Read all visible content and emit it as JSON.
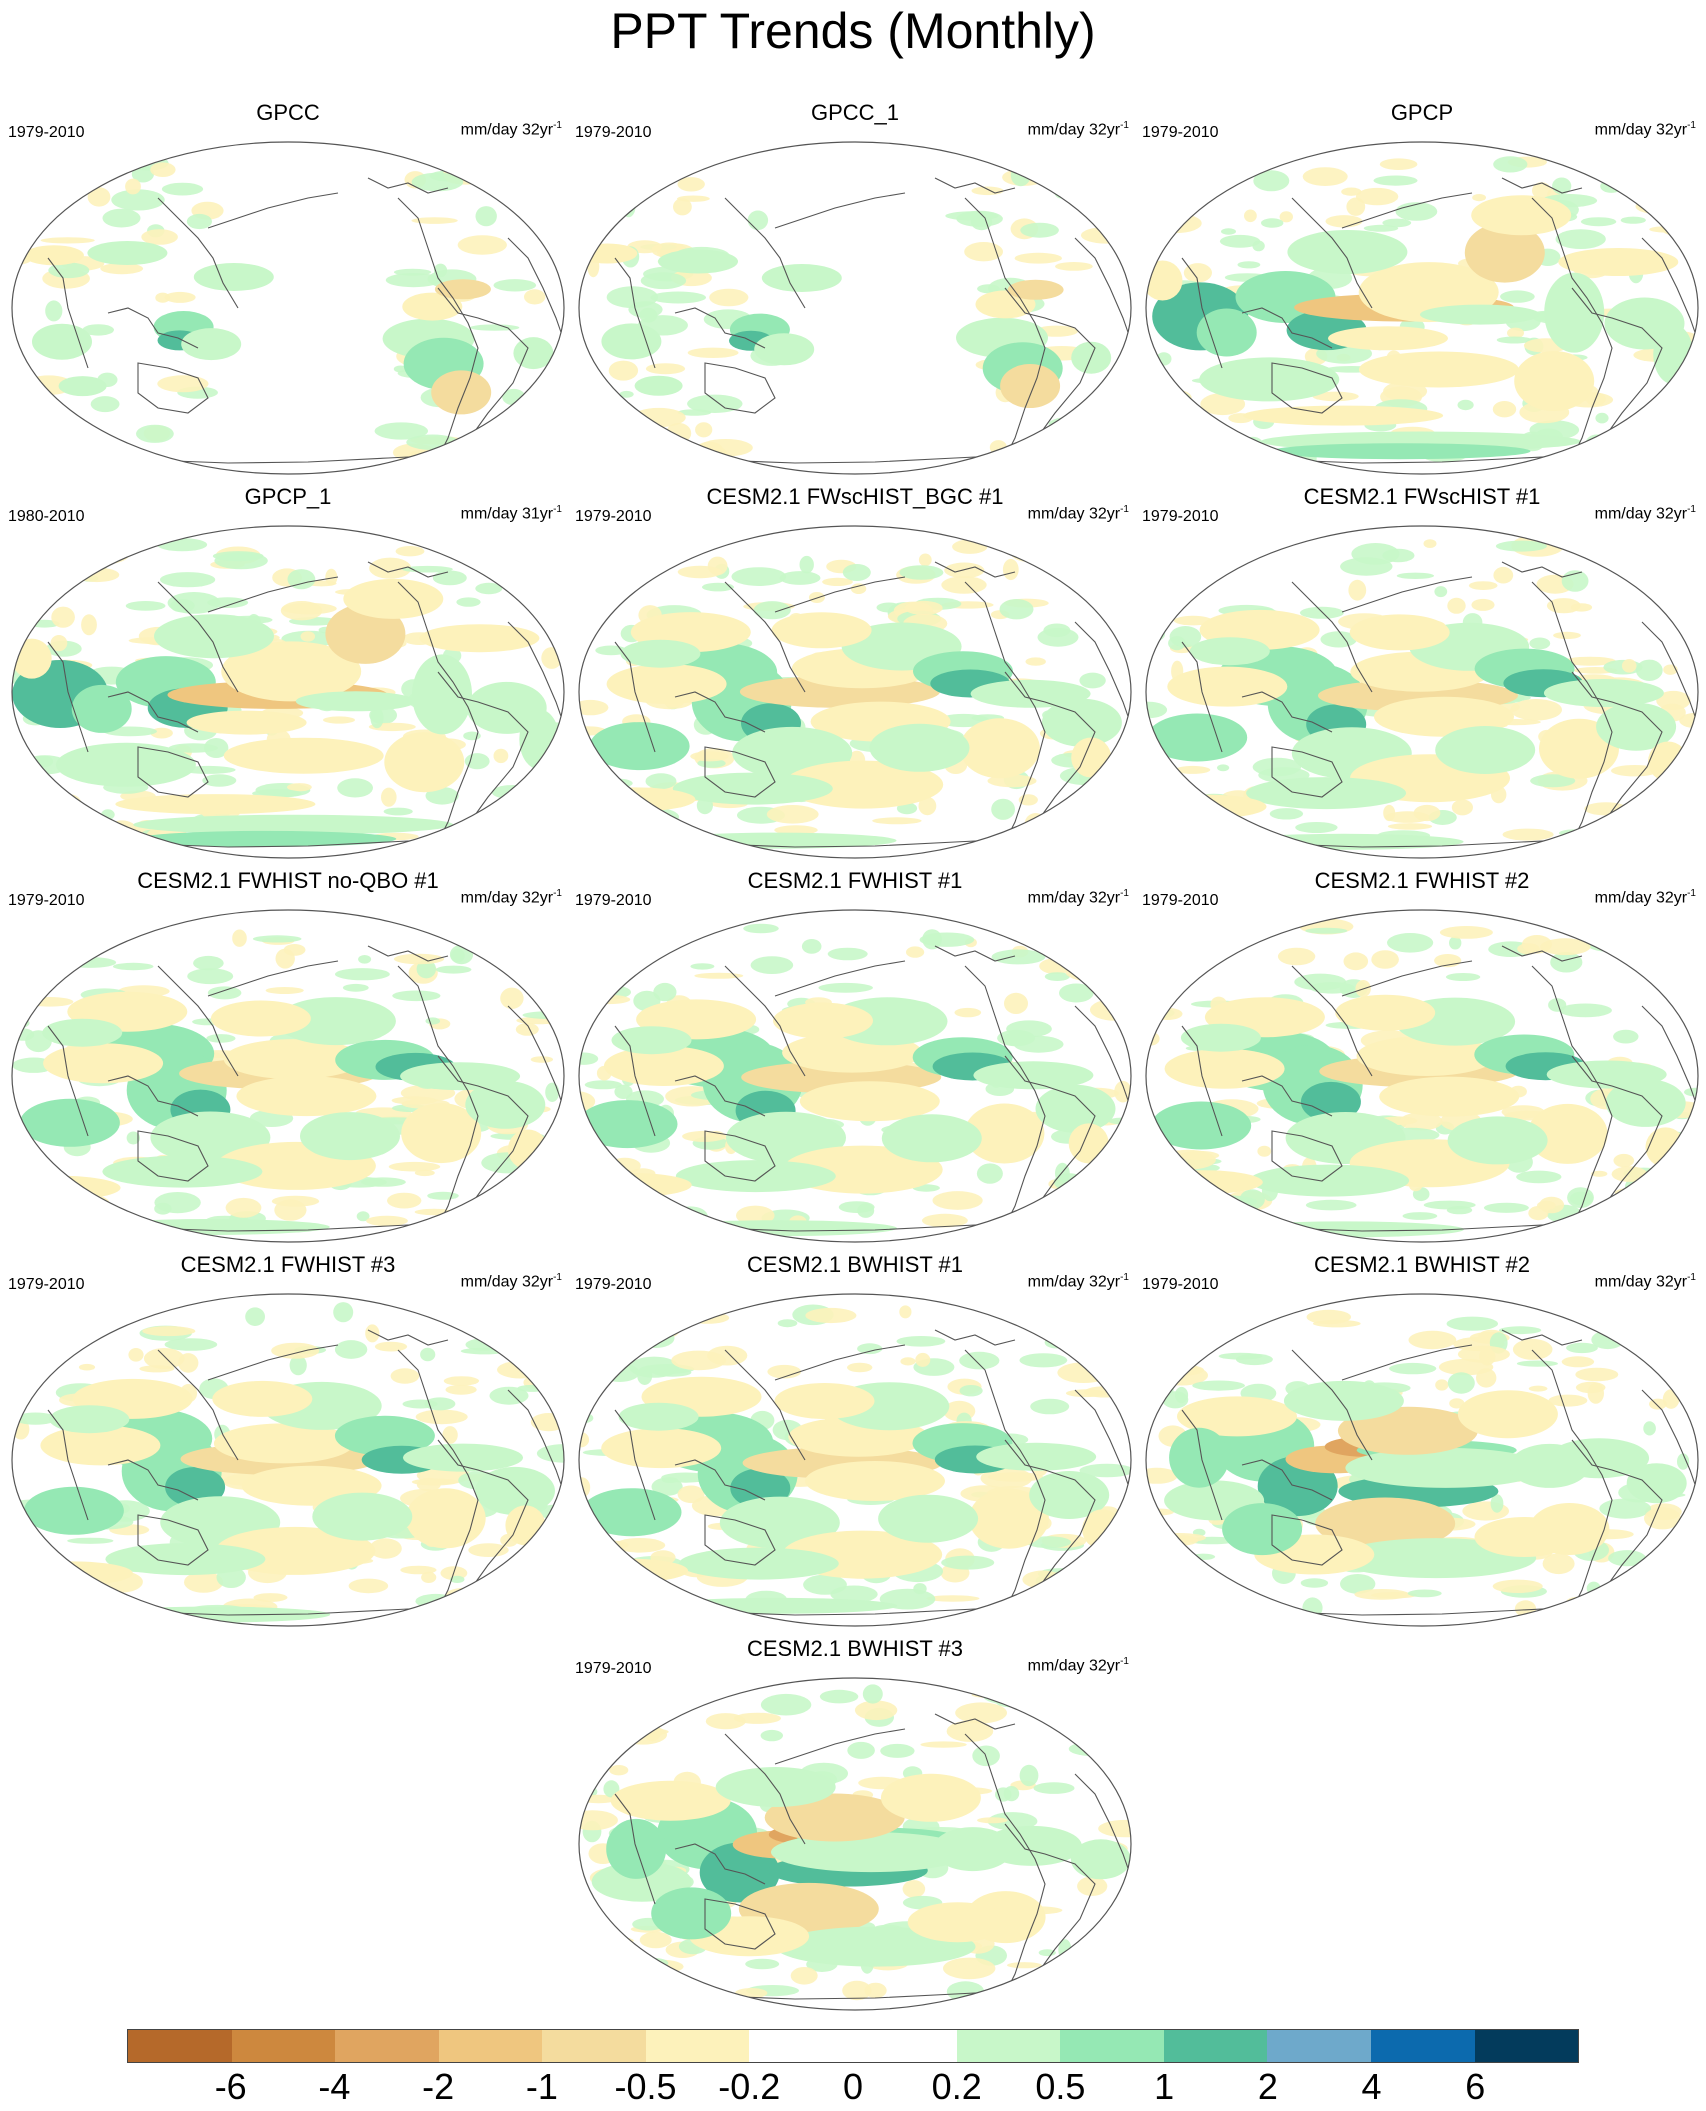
{
  "title": "PPT Trends (Monthly)",
  "panels": [
    {
      "title": "GPCC",
      "years": "1979-2010",
      "units": "mm/day 32yr",
      "pattern": "gpcc"
    },
    {
      "title": "GPCC_1",
      "years": "1979-2010",
      "units": "mm/day 32yr",
      "pattern": "gpcc"
    },
    {
      "title": "GPCP",
      "years": "1979-2010",
      "units": "mm/day 32yr",
      "pattern": "obs"
    },
    {
      "title": "GPCP_1",
      "years": "1980-2010",
      "units": "mm/day 31yr",
      "pattern": "obs"
    },
    {
      "title": "CESM2.1 FWscHIST_BGC #1",
      "years": "1979-2010",
      "units": "mm/day 32yr",
      "pattern": "model"
    },
    {
      "title": "CESM2.1 FWscHIST #1",
      "years": "1979-2010",
      "units": "mm/day 32yr",
      "pattern": "model"
    },
    {
      "title": "CESM2.1 FWHIST no-QBO #1",
      "years": "1979-2010",
      "units": "mm/day 32yr",
      "pattern": "model"
    },
    {
      "title": "CESM2.1 FWHIST #1",
      "years": "1979-2010",
      "units": "mm/day 32yr",
      "pattern": "model"
    },
    {
      "title": "CESM2.1 FWHIST #2",
      "years": "1979-2010",
      "units": "mm/day 32yr",
      "pattern": "model"
    },
    {
      "title": "CESM2.1 FWHIST #3",
      "years": "1979-2010",
      "units": "mm/day 32yr",
      "pattern": "model"
    },
    {
      "title": "CESM2.1 BWHIST #1",
      "years": "1979-2010",
      "units": "mm/day 32yr",
      "pattern": "model"
    },
    {
      "title": "CESM2.1 BWHIST #2",
      "years": "1979-2010",
      "units": "mm/day 32yr",
      "pattern": "enso"
    },
    {
      "title": "CESM2.1 BWHIST #3",
      "years": "1979-2010",
      "units": "mm/day 32yr",
      "pattern": "enso"
    }
  ],
  "units_exponent": "-1",
  "colorbar": {
    "colors": [
      "#b5692a",
      "#cd883e",
      "#e0a560",
      "#efc67f",
      "#f4dc9e",
      "#fdf2bb",
      "#ffffff",
      "#ffffff",
      "#c8f7c9",
      "#95e8b4",
      "#52bd9a",
      "#6ea9cb",
      "#0c6aae",
      "#033b5c"
    ],
    "labels": [
      "-6",
      "-4",
      "-2",
      "-1",
      "-0.5",
      "-0.2",
      "0",
      "0.2",
      "0.5",
      "1",
      "2",
      "4",
      "6"
    ]
  }
}
